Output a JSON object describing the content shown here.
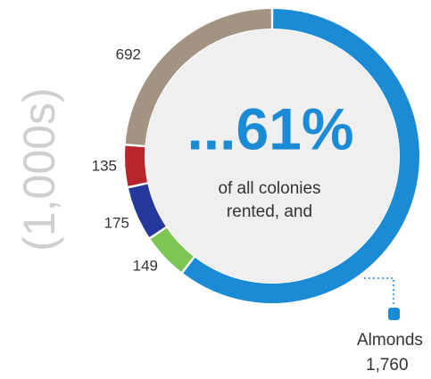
{
  "chart_data": {
    "type": "donut",
    "unit_label": "(1,000s)",
    "center_title": "...61%",
    "center_text": [
      "of all colonies",
      "rented, and"
    ],
    "categories": [
      "Almonds",
      null,
      null,
      null,
      null
    ],
    "values": [
      1760,
      149,
      175,
      135,
      692
    ],
    "value_labels": [
      "1,760",
      "149",
      "175",
      "135",
      "692"
    ],
    "colors": [
      "#1b8bd6",
      "#7cc655",
      "#24399b",
      "#b8262b",
      "#a39383"
    ]
  }
}
